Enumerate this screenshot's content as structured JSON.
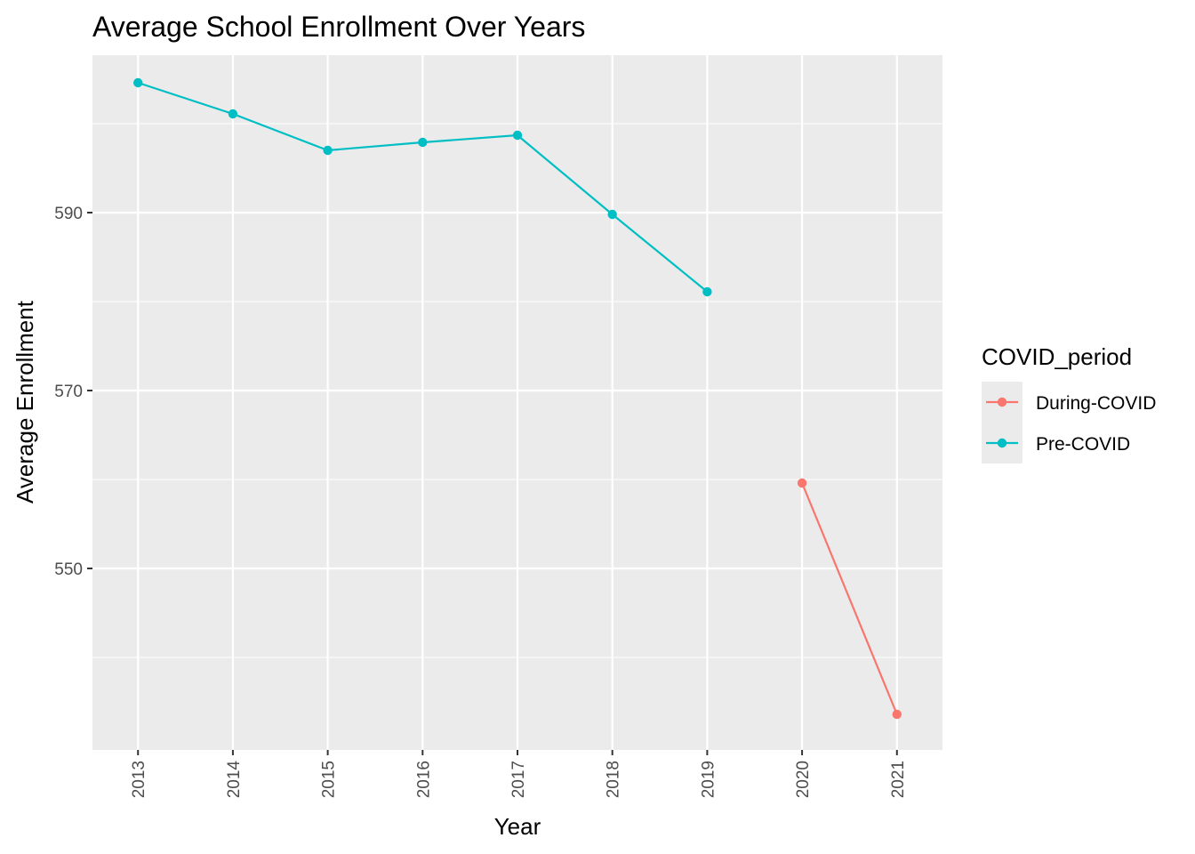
{
  "chart_data": {
    "type": "line",
    "title": "Average School Enrollment Over Years",
    "xlabel": "Year",
    "ylabel": "Average Enrollment",
    "x": [
      2013,
      2014,
      2015,
      2016,
      2017,
      2018,
      2019,
      2020,
      2021
    ],
    "x_tick_labels": [
      "2013",
      "2014",
      "2015",
      "2016",
      "2017",
      "2018",
      "2019",
      "2020",
      "2021"
    ],
    "y_ticks": [
      550,
      570,
      590
    ],
    "y_tick_labels": [
      "550",
      "570",
      "590"
    ],
    "ylim": [
      529.6,
      607.7
    ],
    "grid": true,
    "legend": {
      "title": "COVID_period",
      "position": "right",
      "entries": [
        "During-COVID",
        "Pre-COVID"
      ]
    },
    "series": [
      {
        "name": "During-COVID",
        "color": "#F8766D",
        "points": [
          [
            2020,
            559.6
          ],
          [
            2021,
            533.6
          ]
        ]
      },
      {
        "name": "Pre-COVID",
        "color": "#00BFC4",
        "points": [
          [
            2013,
            604.6
          ],
          [
            2014,
            601.1
          ],
          [
            2015,
            597.0
          ],
          [
            2016,
            597.9
          ],
          [
            2017,
            598.7
          ],
          [
            2018,
            589.8
          ],
          [
            2019,
            581.1
          ]
        ]
      }
    ]
  }
}
